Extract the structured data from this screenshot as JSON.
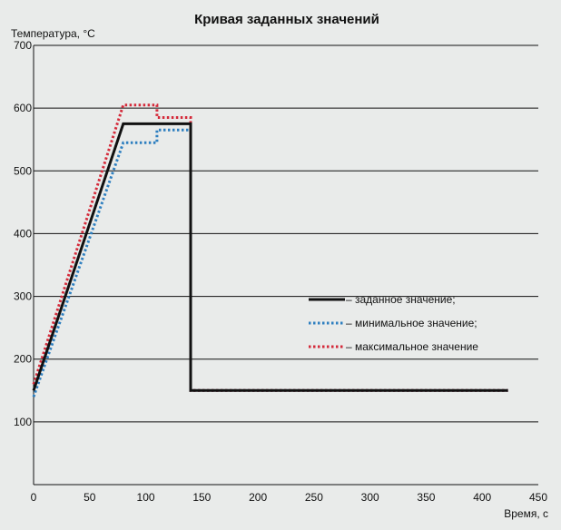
{
  "chart_data": {
    "type": "line",
    "title": "Кривая заданных значений",
    "ylabel": "Температура, °С",
    "xlabel": "Время, с",
    "xlim": [
      0,
      450
    ],
    "ylim": [
      0,
      700
    ],
    "xticks": [
      "0",
      "50",
      "100",
      "150",
      "200",
      "250",
      "300",
      "350",
      "400",
      "450"
    ],
    "yticks": [
      "",
      "100",
      "200",
      "300",
      "400",
      "500",
      "600",
      "700"
    ],
    "grid": "horizontal",
    "legend_position": "right",
    "series": [
      {
        "name": "– заданное значение;",
        "color": "#111111",
        "style": "solid",
        "x": [
          0,
          80,
          140,
          140,
          423
        ],
        "y": [
          150,
          575,
          575,
          150,
          150
        ]
      },
      {
        "name": "– минимальное значение;",
        "color": "#2e7fc0",
        "style": "dotted",
        "x": [
          0,
          80,
          110,
          110,
          140,
          140,
          423
        ],
        "y": [
          140,
          545,
          545,
          565,
          565,
          150,
          150
        ]
      },
      {
        "name": "– максимальное значение",
        "color": "#d42a3a",
        "style": "dotted",
        "x": [
          0,
          80,
          110,
          110,
          140,
          140,
          423
        ],
        "y": [
          160,
          605,
          605,
          585,
          585,
          150,
          150
        ]
      }
    ]
  }
}
